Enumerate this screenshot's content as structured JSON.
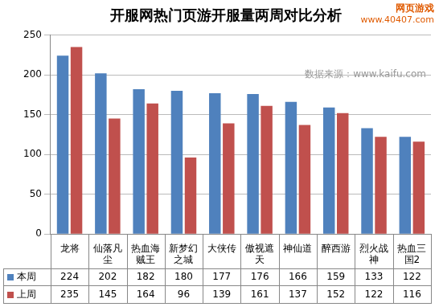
{
  "chart_data": {
    "type": "bar",
    "title": "开服网热门页游开服量两周对比分析",
    "categories": [
      "龙将",
      "仙落凡尘",
      "热血海贼王",
      "新梦幻之城",
      "大侠传",
      "傲视遮天",
      "神仙道",
      "醉西游",
      "烈火战神",
      "热血三国2"
    ],
    "series": [
      {
        "name": "本周",
        "color": "#4f81bd",
        "values": [
          224,
          202,
          182,
          180,
          177,
          176,
          166,
          159,
          133,
          122
        ]
      },
      {
        "name": "上周",
        "color": "#c0504d",
        "values": [
          235,
          145,
          164,
          96,
          139,
          161,
          137,
          152,
          122,
          116
        ]
      }
    ],
    "ylim": [
      0,
      250
    ],
    "yticks": [
      0,
      50,
      100,
      150,
      200,
      250
    ],
    "grid": true,
    "annotations": [
      "数据来源：www.kaifu.com",
      "网页游戏",
      "www.40407.com"
    ]
  }
}
